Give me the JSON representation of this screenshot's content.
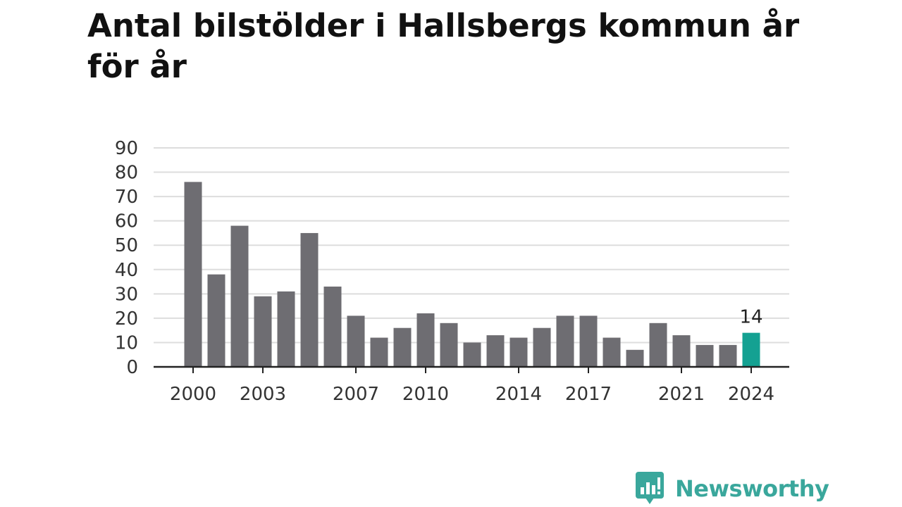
{
  "chart_data": {
    "type": "bar",
    "title": "Antal bilstölder i Hallsbergs kommun år för år",
    "x": [
      2000,
      2001,
      2002,
      2003,
      2004,
      2005,
      2006,
      2007,
      2008,
      2009,
      2010,
      2011,
      2012,
      2013,
      2014,
      2015,
      2016,
      2017,
      2018,
      2019,
      2020,
      2021,
      2022,
      2023,
      2024
    ],
    "values": [
      76,
      38,
      58,
      29,
      31,
      55,
      33,
      21,
      12,
      16,
      22,
      18,
      10,
      13,
      12,
      16,
      21,
      21,
      12,
      7,
      18,
      13,
      9,
      9,
      14
    ],
    "xticks": [
      "2000",
      "2003",
      "2007",
      "2010",
      "2014",
      "2017",
      "2021",
      "2024"
    ],
    "yticks": [
      0,
      10,
      20,
      30,
      40,
      50,
      60,
      70,
      80,
      90
    ],
    "ylim": [
      0,
      90
    ],
    "grid": true,
    "annotations": [
      {
        "x": 2024,
        "text": "14"
      }
    ],
    "colors": {
      "bar": "#6e6d72",
      "highlight": "#14a192",
      "grid": "#dddddd",
      "axis": "#222222"
    }
  },
  "branding": {
    "name": "Newsworthy",
    "icon": "newsworthy-logo-icon",
    "color": "#3aa79c"
  }
}
